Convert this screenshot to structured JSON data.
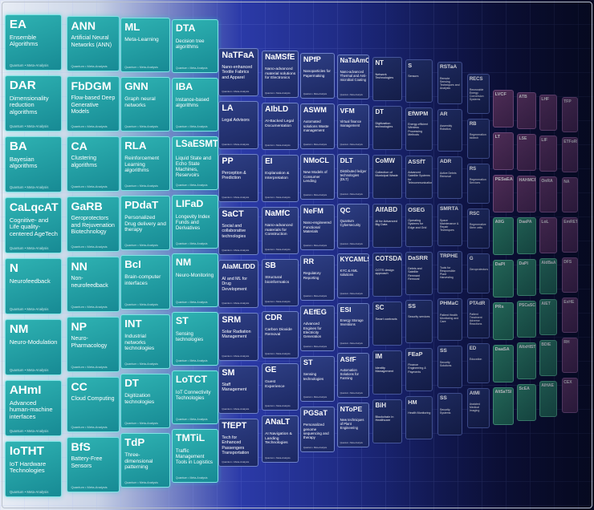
{
  "footer_text": "Quantum • Meta-Analysis",
  "colors": {
    "teal": "#2fb3b3",
    "navy": "#2e3f85",
    "dark": "#22306a",
    "green": "#2f8a6e",
    "plum": "#6a3b6c"
  },
  "columns": [
    {
      "style": "teal",
      "tiles": [
        {
          "abbr": "EA",
          "name": "Ensemble Algorithms"
        },
        {
          "abbr": "DAR",
          "name": "Dimensionality reduction algorithms"
        },
        {
          "abbr": "BA",
          "name": "Bayesian algorithms"
        },
        {
          "abbr": "CaLqcAT",
          "name": "Cognitive- and Life quality-centered AgeTech"
        },
        {
          "abbr": "N",
          "name": "Neurofeedback"
        },
        {
          "abbr": "NM",
          "name": "Neuro-Modulation"
        },
        {
          "abbr": "AHmI",
          "name": "Advanced human-machine interfaces"
        },
        {
          "abbr": "IoTHT",
          "name": "IoT Hardware Technologies"
        }
      ]
    },
    {
      "style": "teal",
      "tiles": [
        {
          "abbr": "ANN",
          "name": "Artificial Neural Networks (ANN)"
        },
        {
          "abbr": "FbDGM",
          "name": "Flow-based Deep Generative Models"
        },
        {
          "abbr": "CA",
          "name": "Clustering algorithms"
        },
        {
          "abbr": "GaRB",
          "name": "Geroprotectors and Rejuvenation Biotechnology"
        },
        {
          "abbr": "NN",
          "name": "Non-neurofeedback"
        },
        {
          "abbr": "NP",
          "name": "Neuro-Pharmacology"
        },
        {
          "abbr": "CC",
          "name": "Cloud Computing"
        },
        {
          "abbr": "BfS",
          "name": "Battery-Free Sensors"
        }
      ]
    },
    {
      "style": "teal",
      "tiles": [
        {
          "abbr": "ML",
          "name": "Meta-Learning"
        },
        {
          "abbr": "GNN",
          "name": "Graph neural networks"
        },
        {
          "abbr": "RLA",
          "name": "Reinforcement Learning algorithms"
        },
        {
          "abbr": "PDdaT",
          "name": "Personalized Drug delivery and therapy"
        },
        {
          "abbr": "BcI",
          "name": "Brain-computer interfaces"
        },
        {
          "abbr": "INT",
          "name": "Industrial networks technologies"
        },
        {
          "abbr": "DT",
          "name": "Digitization technologies"
        },
        {
          "abbr": "TdP",
          "name": "Three-dimensional patterning"
        }
      ]
    },
    {
      "style": "teal",
      "tiles": [
        {
          "abbr": "DTA",
          "name": "Decision tree algorithms"
        },
        {
          "abbr": "IBA",
          "name": "Instance-based algorithms"
        },
        {
          "abbr": "LSaESMT",
          "name": "Liquid State and Echo State Machines, Reservoirs"
        },
        {
          "abbr": "LIFaD",
          "name": "Longevity Index Funds and Derivatives"
        },
        {
          "abbr": "NM",
          "name": "Neuro-Monitoring"
        },
        {
          "abbr": "ST",
          "name": "Sensing technologies"
        },
        {
          "abbr": "LoTCT",
          "name": "IoT Connectivity Technologies"
        },
        {
          "abbr": "TMTiL",
          "name": "Traffic Management Tools in Logistics"
        }
      ]
    },
    {
      "style": "navy",
      "tiles": [
        {
          "abbr": "NaTFaA",
          "name": "Nano-enhanced Textile Fabrics and Apparel"
        },
        {
          "abbr": "LA",
          "name": "Legal Advisors"
        },
        {
          "abbr": "PP",
          "name": "Perception & Prediction"
        },
        {
          "abbr": "SaCT",
          "name": "Social and collaborative technologies"
        },
        {
          "abbr": "AIaMLfDD",
          "name": "AI and ML for Drug Development"
        },
        {
          "abbr": "SRM",
          "name": "Solar Radiation Management"
        },
        {
          "abbr": "SM",
          "name": "Staff Management"
        },
        {
          "abbr": "TfEPT",
          "name": "Tech for Enhanced Passengers Transportation"
        }
      ]
    },
    {
      "style": "navy",
      "tiles": [
        {
          "abbr": "NaMSfE",
          "name": "Nano-advanced material solutions for Electronics"
        },
        {
          "abbr": "AIbLD",
          "name": "AI-Backed Legal Documentation"
        },
        {
          "abbr": "EI",
          "name": "Explanation & Interpretation"
        },
        {
          "abbr": "NaMfC",
          "name": "Nano-advanced materials for Construction"
        },
        {
          "abbr": "SB",
          "name": "Structural bioinformatics"
        },
        {
          "abbr": "CDR",
          "name": "Carbon Dioxide Removal"
        },
        {
          "abbr": "GE",
          "name": "Guest Experience"
        },
        {
          "abbr": "ANaLT",
          "name": "AI Navigation & Landing Technologies"
        }
      ]
    },
    {
      "style": "navy",
      "tiles": [
        {
          "abbr": "NPfP",
          "name": "Nanoparticles for Papermaking"
        },
        {
          "abbr": "ASWM",
          "name": "Automated solutions Waste management"
        },
        {
          "abbr": "NMoCL",
          "name": "New Models of Consumer Lending"
        },
        {
          "abbr": "NeFM",
          "name": "Nano-engineered Functional Materials"
        },
        {
          "abbr": "RR",
          "name": "Regulatory Reporting"
        },
        {
          "abbr": "AEfEG",
          "name": "Advanced Engines for Electricity Generation"
        },
        {
          "abbr": "ST",
          "name": "Sensing technologies"
        },
        {
          "abbr": "PGSaT",
          "name": "Personalized genome sequencing and therapy"
        }
      ]
    },
    {
      "style": "navy",
      "tiles": [
        {
          "abbr": "NaTaAmC",
          "name": "Nano-advanced Thermal and Anti-microbial Coating"
        },
        {
          "abbr": "VFM",
          "name": "Virtual finance management"
        },
        {
          "abbr": "DLT",
          "name": "Distributed ledger technologies (DLT)"
        },
        {
          "abbr": "QC",
          "name": "Quantum Cybersecurity"
        },
        {
          "abbr": "KYCAMLS",
          "name": "KYC & AML solutions"
        },
        {
          "abbr": "ESI",
          "name": "Energy Storage Inventions"
        },
        {
          "abbr": "ASfF",
          "name": "Automation Solutions for Farming"
        },
        {
          "abbr": "NToPE",
          "name": "New techniques of Plant Engineering"
        }
      ]
    },
    {
      "style": "dark",
      "tiles": [
        {
          "abbr": "NT",
          "name": "Network Technologies"
        },
        {
          "abbr": "DT",
          "name": "Digitization technologies"
        },
        {
          "abbr": "CoMW",
          "name": "Collection of Municipal Waste"
        },
        {
          "abbr": "AIfABD",
          "name": "AI for Advanced Big Data"
        },
        {
          "abbr": "COTSDA",
          "name": "COTS design approach"
        },
        {
          "abbr": "SC",
          "name": "Smart contracts"
        },
        {
          "abbr": "IM",
          "name": "Identity Management"
        },
        {
          "abbr": "BiH",
          "name": "Blockchain in Healthcare"
        }
      ]
    },
    {
      "style": "dark",
      "tiles": [
        {
          "abbr": "S",
          "name": "Sensors"
        },
        {
          "abbr": "EfWPM",
          "name": "Energy-efficient Wireless Processing Methods"
        },
        {
          "abbr": "ASSfT",
          "name": "Advanced Satellite Systems for Telecommunication"
        },
        {
          "abbr": "OSEG",
          "name": "Operating Systems for Edge and Grid"
        },
        {
          "abbr": "DaSRR",
          "name": "Debris and Satellite Remnant Removal"
        },
        {
          "abbr": "SS",
          "name": "Security services"
        },
        {
          "abbr": "FEaP",
          "name": "Finance Engineering & Payments"
        },
        {
          "abbr": "HM",
          "name": "Health Monitoring"
        }
      ]
    },
    {
      "style": "dark",
      "tiles": [
        {
          "abbr": "RSTaA",
          "name": "Remote Sensing Techniques and Analysis"
        },
        {
          "abbr": "AR",
          "name": "Assembly Robotics"
        },
        {
          "abbr": "ADR",
          "name": "Active Debris Removal"
        },
        {
          "abbr": "SMRTA",
          "name": "Space Maintenance & Repair Techniques"
        },
        {
          "abbr": "TRPHE",
          "name": "Tools for Responsible Plant Harvesting"
        },
        {
          "abbr": "PHMaC",
          "name": "Patient Health Monitoring and Care"
        },
        {
          "abbr": "SS",
          "name": "Security Solutions"
        },
        {
          "abbr": "SS",
          "name": "Security Systems"
        }
      ]
    },
    {
      "style": "dark",
      "tiles": [
        {
          "abbr": "RECS",
          "name": "Renewable Energy Conversion Systems"
        },
        {
          "abbr": "RB",
          "name": "Regeneration biotech"
        },
        {
          "abbr": "RS",
          "name": "Regeneration Services"
        },
        {
          "abbr": "RSC",
          "name": "Regenerative Stem cells"
        },
        {
          "abbr": "G",
          "name": "Geroprotectors"
        },
        {
          "abbr": "PTAdR",
          "name": "Patient Treatment Adverse Reactions"
        },
        {
          "abbr": "ED",
          "name": "Education"
        },
        {
          "abbr": "AtMI",
          "name": "Assisted Medical Imaging"
        }
      ]
    },
    {
      "style": "mixed",
      "tiles": [
        {
          "abbr": "LVCF",
          "name": "",
          "style": "plum"
        },
        {
          "abbr": "LT",
          "name": "",
          "style": "plum"
        },
        {
          "abbr": "PESaEA",
          "name": "",
          "style": "plum"
        },
        {
          "abbr": "AIIG",
          "name": "",
          "style": "green"
        },
        {
          "abbr": "DaPI",
          "name": "",
          "style": "green"
        },
        {
          "abbr": "PRs",
          "name": "",
          "style": "green"
        },
        {
          "abbr": "DaaSA",
          "name": "",
          "style": "green"
        },
        {
          "abbr": "AItSaTSI",
          "name": "",
          "style": "green"
        }
      ]
    },
    {
      "style": "mixed",
      "tiles": [
        {
          "abbr": "ATB",
          "name": "",
          "style": "plum"
        },
        {
          "abbr": "LSE",
          "name": "",
          "style": "plum"
        },
        {
          "abbr": "HAHMCB",
          "name": "",
          "style": "plum"
        },
        {
          "abbr": "DaaPA",
          "name": "",
          "style": "green"
        },
        {
          "abbr": "DaPI",
          "name": "",
          "style": "green"
        },
        {
          "abbr": "PSCaSC",
          "name": "",
          "style": "green"
        },
        {
          "abbr": "AItxHIST",
          "name": "",
          "style": "green"
        },
        {
          "abbr": "ScEA",
          "name": "",
          "style": "green"
        }
      ]
    },
    {
      "style": "mixed",
      "tiles": [
        {
          "abbr": "LHF",
          "name": "",
          "style": "plum"
        },
        {
          "abbr": "LIF",
          "name": "",
          "style": "plum"
        },
        {
          "abbr": "OnRA",
          "name": "",
          "style": "plum"
        },
        {
          "abbr": "LoL",
          "name": "",
          "style": "plum"
        },
        {
          "abbr": "AIdBaA",
          "name": "",
          "style": "green"
        },
        {
          "abbr": "AIET",
          "name": "",
          "style": "green"
        },
        {
          "abbr": "BDIE",
          "name": "",
          "style": "green"
        },
        {
          "abbr": "AIHAE",
          "name": "",
          "style": "green"
        }
      ]
    },
    {
      "style": "mixed",
      "tiles": [
        {
          "abbr": "TFP",
          "name": "",
          "style": "plum"
        },
        {
          "abbr": "ETFoRE",
          "name": "",
          "style": "plum"
        },
        {
          "abbr": "NA",
          "name": "",
          "style": "plum"
        },
        {
          "abbr": "EmRET",
          "name": "",
          "style": "plum"
        },
        {
          "abbr": "DFS",
          "name": "",
          "style": "plum"
        },
        {
          "abbr": "ExHE",
          "name": "",
          "style": "plum"
        },
        {
          "abbr": "RH",
          "name": "",
          "style": "plum"
        },
        {
          "abbr": "CEX",
          "name": "",
          "style": "plum"
        }
      ]
    }
  ]
}
